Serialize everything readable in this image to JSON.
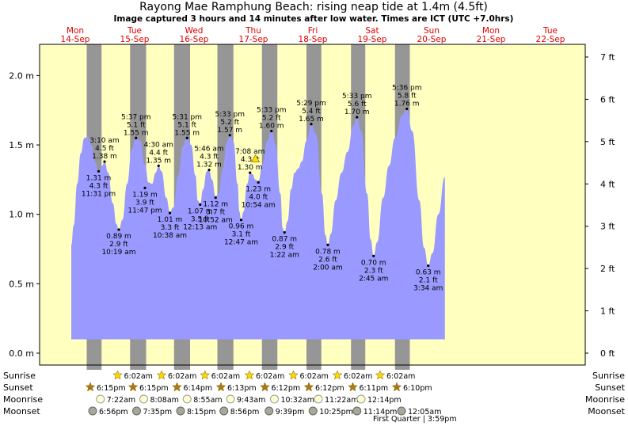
{
  "title": "Rayong Mae Ramphung Beach: rising  neap tide at 1.4m (4.5ft)",
  "subtitle": "Image captured 3 hours and 14 minutes after low water. Times are ICT (UTC +7.0hrs)",
  "colors": {
    "day": "#ffffc0",
    "night": "#969696",
    "water": "#9999ff",
    "day_label": "#e00000",
    "sun": "#ffd700",
    "sun_set": "#b07810"
  },
  "chart_data": {
    "type": "area",
    "title": "Rayong Mae Ramphung Beach: rising  neap tide at 1.4m (4.5ft)",
    "x_unit": "days from Mon 14-Sep 00:00",
    "days": [
      {
        "name": "Mon",
        "date": "14-Sep"
      },
      {
        "name": "Tue",
        "date": "15-Sep"
      },
      {
        "name": "Wed",
        "date": "16-Sep"
      },
      {
        "name": "Thu",
        "date": "17-Sep"
      },
      {
        "name": "Fri",
        "date": "18-Sep"
      },
      {
        "name": "Sat",
        "date": "19-Sep"
      },
      {
        "name": "Sun",
        "date": "20-Sep"
      },
      {
        "name": "Mon",
        "date": "21-Sep"
      },
      {
        "name": "Tue",
        "date": "22-Sep"
      }
    ],
    "y_left_ticks": [
      "0.0 m",
      "0.5 m",
      "1.0 m",
      "1.5 m",
      "2.0 m"
    ],
    "y_right_ticks": [
      "0 ft",
      "1 ft",
      "2 ft",
      "3 ft",
      "4 ft",
      "5 ft",
      "6 ft",
      "7 ft"
    ],
    "ylim_m": [
      -0.07,
      2.2
    ],
    "series": [
      {
        "x": 0.0,
        "y": 0.78
      },
      {
        "x": 0.04,
        "y": 0.92
      },
      {
        "x": 0.1,
        "y": 1.22
      },
      {
        "x": 0.16,
        "y": 1.44
      },
      {
        "x": 0.22,
        "y": 1.55
      },
      {
        "x": 0.28,
        "y": 1.56
      },
      {
        "x": 0.34,
        "y": 1.5
      },
      {
        "x": 0.4,
        "y": 1.38
      },
      {
        "x": 0.46,
        "y": 1.31
      },
      {
        "x": 0.52,
        "y": 1.35
      },
      {
        "x": 0.56,
        "y": 1.38
      },
      {
        "x": 0.62,
        "y": 1.3
      },
      {
        "x": 0.7,
        "y": 1.08
      },
      {
        "x": 0.76,
        "y": 0.93
      },
      {
        "x": 0.8,
        "y": 0.89
      },
      {
        "x": 0.86,
        "y": 0.96
      },
      {
        "x": 0.94,
        "y": 1.22
      },
      {
        "x": 1.02,
        "y": 1.47
      },
      {
        "x": 1.09,
        "y": 1.56
      },
      {
        "x": 1.16,
        "y": 1.53
      },
      {
        "x": 1.24,
        "y": 1.36
      },
      {
        "x": 1.3,
        "y": 1.23
      },
      {
        "x": 1.36,
        "y": 1.22
      },
      {
        "x": 1.42,
        "y": 1.3
      },
      {
        "x": 1.47,
        "y": 1.35
      },
      {
        "x": 1.52,
        "y": 1.31
      },
      {
        "x": 1.6,
        "y": 1.12
      },
      {
        "x": 1.66,
        "y": 1.02
      },
      {
        "x": 1.72,
        "y": 1.05
      },
      {
        "x": 1.8,
        "y": 1.28
      },
      {
        "x": 1.88,
        "y": 1.49
      },
      {
        "x": 1.95,
        "y": 1.56
      },
      {
        "x": 2.02,
        "y": 1.5
      },
      {
        "x": 2.09,
        "y": 1.28
      },
      {
        "x": 2.13,
        "y": 1.1
      },
      {
        "x": 2.17,
        "y": 1.08
      },
      {
        "x": 2.22,
        "y": 1.18
      },
      {
        "x": 2.28,
        "y": 1.31
      },
      {
        "x": 2.32,
        "y": 1.32
      },
      {
        "x": 2.37,
        "y": 1.25
      },
      {
        "x": 2.43,
        "y": 1.13
      },
      {
        "x": 2.48,
        "y": 1.15
      },
      {
        "x": 2.55,
        "y": 1.33
      },
      {
        "x": 2.62,
        "y": 1.52
      },
      {
        "x": 2.67,
        "y": 1.58
      },
      {
        "x": 2.73,
        "y": 1.52
      },
      {
        "x": 2.8,
        "y": 1.22
      },
      {
        "x": 2.83,
        "y": 1.02
      },
      {
        "x": 2.86,
        "y": 0.96
      },
      {
        "x": 2.9,
        "y": 1.02
      },
      {
        "x": 2.96,
        "y": 1.22
      },
      {
        "x": 3.01,
        "y": 1.3
      },
      {
        "x": 3.05,
        "y": 1.29
      },
      {
        "x": 3.1,
        "y": 1.25
      },
      {
        "x": 3.15,
        "y": 1.24
      },
      {
        "x": 3.22,
        "y": 1.36
      },
      {
        "x": 3.3,
        "y": 1.53
      },
      {
        "x": 3.37,
        "y": 1.61
      },
      {
        "x": 3.44,
        "y": 1.5
      },
      {
        "x": 3.52,
        "y": 1.15
      },
      {
        "x": 3.56,
        "y": 0.9
      },
      {
        "x": 3.59,
        "y": 0.87
      },
      {
        "x": 3.64,
        "y": 0.95
      },
      {
        "x": 3.7,
        "y": 1.18
      },
      {
        "x": 3.76,
        "y": 1.3
      },
      {
        "x": 3.82,
        "y": 1.33
      },
      {
        "x": 3.88,
        "y": 1.38
      },
      {
        "x": 3.96,
        "y": 1.53
      },
      {
        "x": 4.04,
        "y": 1.65
      },
      {
        "x": 4.12,
        "y": 1.58
      },
      {
        "x": 4.22,
        "y": 1.15
      },
      {
        "x": 4.28,
        "y": 0.85
      },
      {
        "x": 4.32,
        "y": 0.78
      },
      {
        "x": 4.37,
        "y": 0.86
      },
      {
        "x": 4.45,
        "y": 1.1
      },
      {
        "x": 4.55,
        "y": 1.3
      },
      {
        "x": 4.65,
        "y": 1.45
      },
      {
        "x": 4.75,
        "y": 1.64
      },
      {
        "x": 4.81,
        "y": 1.7
      },
      {
        "x": 4.88,
        "y": 1.6
      },
      {
        "x": 4.98,
        "y": 1.15
      },
      {
        "x": 5.04,
        "y": 0.82
      },
      {
        "x": 5.09,
        "y": 0.7
      },
      {
        "x": 5.15,
        "y": 0.8
      },
      {
        "x": 5.25,
        "y": 1.12
      },
      {
        "x": 5.35,
        "y": 1.35
      },
      {
        "x": 5.45,
        "y": 1.55
      },
      {
        "x": 5.58,
        "y": 1.72
      },
      {
        "x": 5.65,
        "y": 1.76
      },
      {
        "x": 5.74,
        "y": 1.6
      },
      {
        "x": 5.86,
        "y": 1.1
      },
      {
        "x": 5.94,
        "y": 0.76
      },
      {
        "x": 6.01,
        "y": 0.63
      },
      {
        "x": 6.08,
        "y": 0.72
      },
      {
        "x": 6.18,
        "y": 1.0
      },
      {
        "x": 6.29,
        "y": 1.27
      }
    ],
    "extremes": [
      {
        "x": 0.46,
        "y": 1.31,
        "lines": [
          "1.31 m",
          "4.3 ft",
          "11:31 pm"
        ],
        "pos": "below"
      },
      {
        "x": 0.56,
        "y": 1.38,
        "lines": [
          "3:10 am",
          "4.5 ft",
          "1.38 m"
        ],
        "pos": "above"
      },
      {
        "x": 0.8,
        "y": 0.89,
        "lines": [
          "0.89 m",
          "2.9 ft",
          "10:19 am"
        ],
        "pos": "below"
      },
      {
        "x": 1.09,
        "y": 1.55,
        "lines": [
          "5:37 pm",
          "5.1 ft",
          "1.55 m"
        ],
        "pos": "above"
      },
      {
        "x": 1.24,
        "y": 1.19,
        "lines": [
          "1.19 m",
          "3.9 ft",
          "11:47 pm"
        ],
        "pos": "below"
      },
      {
        "x": 1.47,
        "y": 1.35,
        "lines": [
          "4:30 am",
          "4.4 ft",
          "1.35 m"
        ],
        "pos": "above"
      },
      {
        "x": 1.66,
        "y": 1.01,
        "lines": [
          "1.01 m",
          "3.3 ft",
          "10:38 am"
        ],
        "pos": "below"
      },
      {
        "x": 1.95,
        "y": 1.55,
        "lines": [
          "5:31 pm",
          "5.1 ft",
          "1.55 m"
        ],
        "pos": "above"
      },
      {
        "x": 2.17,
        "y": 1.07,
        "lines": [
          "1.07 m",
          "3.5 ft",
          "12:13 am"
        ],
        "pos": "below"
      },
      {
        "x": 2.32,
        "y": 1.32,
        "lines": [
          "5:46 am",
          "4.3 ft",
          "1.32 m"
        ],
        "pos": "above"
      },
      {
        "x": 2.43,
        "y": 1.12,
        "lines": [
          "1.12 m",
          "3.7 ft",
          "10:52 am"
        ],
        "pos": "below"
      },
      {
        "x": 2.67,
        "y": 1.57,
        "lines": [
          "5:33 pm",
          "5.2 ft",
          "1.57 m"
        ],
        "pos": "above"
      },
      {
        "x": 2.86,
        "y": 0.96,
        "lines": [
          "0.96 m",
          "3.1 ft",
          "12:47 am"
        ],
        "pos": "below"
      },
      {
        "x": 3.01,
        "y": 1.3,
        "lines": [
          "7:08 am",
          "4.3 ft",
          "1.30 m"
        ],
        "pos": "above"
      },
      {
        "x": 3.15,
        "y": 1.23,
        "lines": [
          "1.23 m",
          "4.0 ft",
          "10:54 am"
        ],
        "pos": "below"
      },
      {
        "x": 3.37,
        "y": 1.6,
        "lines": [
          "5:33 pm",
          "5.2 ft",
          "1.60 m"
        ],
        "pos": "above"
      },
      {
        "x": 3.59,
        "y": 0.87,
        "lines": [
          "0.87 m",
          "2.9 ft",
          "1:22 am"
        ],
        "pos": "below"
      },
      {
        "x": 4.04,
        "y": 1.65,
        "lines": [
          "5:29 pm",
          "5.4 ft",
          "1.65 m"
        ],
        "pos": "above"
      },
      {
        "x": 4.32,
        "y": 0.78,
        "lines": [
          "0.78 m",
          "2.6 ft",
          "2:00 am"
        ],
        "pos": "below"
      },
      {
        "x": 4.81,
        "y": 1.7,
        "lines": [
          "5:33 pm",
          "5.6 ft",
          "1.70 m"
        ],
        "pos": "above"
      },
      {
        "x": 5.09,
        "y": 0.7,
        "lines": [
          "0.70 m",
          "2.3 ft",
          "2:45 am"
        ],
        "pos": "below"
      },
      {
        "x": 5.65,
        "y": 1.76,
        "lines": [
          "5:36 pm",
          "5.8 ft",
          "1.76 m"
        ],
        "pos": "above"
      },
      {
        "x": 6.01,
        "y": 0.63,
        "lines": [
          "0.63 m",
          "2.1 ft",
          "3:34 am"
        ],
        "pos": "below"
      }
    ],
    "now": {
      "x": 3.1,
      "y": 1.4
    },
    "nights": [
      [
        0.26,
        0.51
      ],
      [
        0.99,
        1.26
      ],
      [
        1.73,
        2.0
      ],
      [
        2.46,
        2.73
      ],
      [
        3.21,
        3.47
      ],
      [
        3.96,
        4.21
      ],
      [
        4.71,
        4.95
      ],
      [
        5.45,
        5.7
      ]
    ]
  },
  "rows": {
    "labels": [
      "Sunrise",
      "Sunset",
      "Moonrise",
      "Moonset"
    ],
    "sunrise": [
      {
        "x": 0.78,
        "t": "6:02am"
      },
      {
        "x": 1.52,
        "t": "6:02am"
      },
      {
        "x": 2.25,
        "t": "6:02am"
      },
      {
        "x": 3.0,
        "t": "6:02am"
      },
      {
        "x": 3.74,
        "t": "6:02am"
      },
      {
        "x": 4.48,
        "t": "6:02am"
      },
      {
        "x": 5.2,
        "t": "6:02am"
      }
    ],
    "sunset": [
      {
        "x": 0.32,
        "t": "6:15pm"
      },
      {
        "x": 1.04,
        "t": "6:15pm"
      },
      {
        "x": 1.78,
        "t": "6:14pm"
      },
      {
        "x": 2.52,
        "t": "6:13pm"
      },
      {
        "x": 3.26,
        "t": "6:12pm"
      },
      {
        "x": 4.0,
        "t": "6:12pm"
      },
      {
        "x": 4.74,
        "t": "6:11pm"
      },
      {
        "x": 5.48,
        "t": "6:10pm"
      }
    ],
    "moonrise": [
      {
        "x": 0.49,
        "t": "7:22am"
      },
      {
        "x": 1.22,
        "t": "8:08am"
      },
      {
        "x": 1.95,
        "t": "8:55am"
      },
      {
        "x": 2.68,
        "t": "9:43am"
      },
      {
        "x": 3.42,
        "t": "10:32am"
      },
      {
        "x": 4.16,
        "t": "11:22am"
      },
      {
        "x": 4.88,
        "t": "12:14pm"
      }
    ],
    "moonset": [
      {
        "x": 0.36,
        "t": "6:56pm"
      },
      {
        "x": 1.1,
        "t": "7:35pm"
      },
      {
        "x": 1.84,
        "t": "8:15pm"
      },
      {
        "x": 2.57,
        "t": "8:56pm"
      },
      {
        "x": 3.33,
        "t": "9:39pm"
      },
      {
        "x": 4.07,
        "t": "10:25pm"
      },
      {
        "x": 4.81,
        "t": "11:14pm"
      },
      {
        "x": 5.56,
        "t": "12:05am"
      }
    ],
    "moon_phase": {
      "x": 5.08,
      "text": "First Quarter | 3:59pm"
    }
  }
}
